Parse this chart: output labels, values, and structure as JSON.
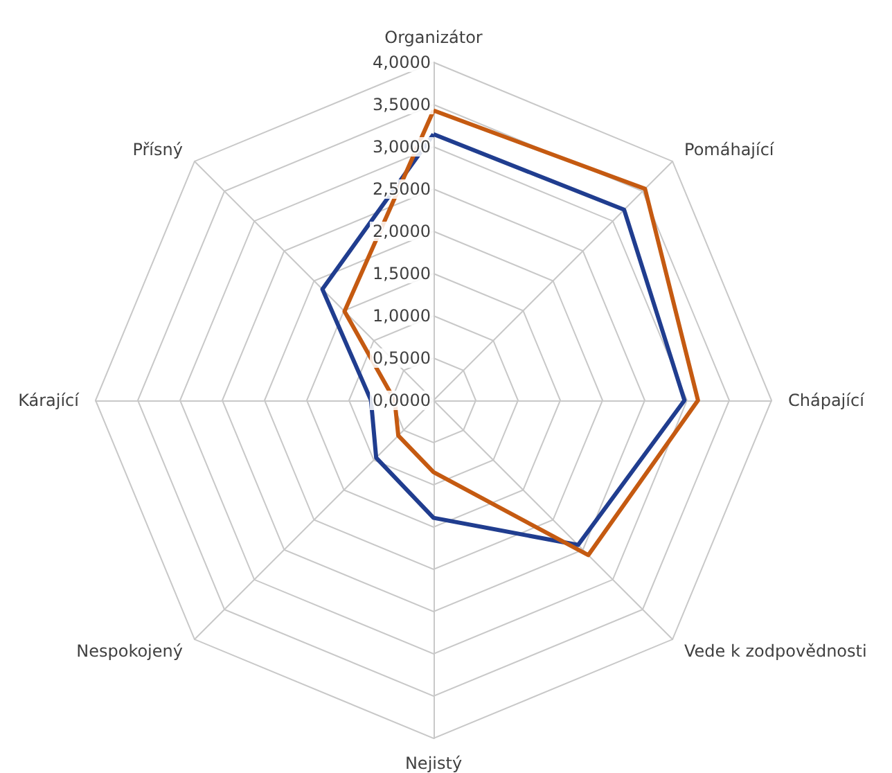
{
  "chart_data": {
    "type": "radar",
    "categories": [
      "Organizátor",
      "Pomáhající",
      "Chápající",
      "Vede k zodpovědnosti",
      "Nejistý",
      "Nespokojený",
      "Kárající",
      "Přísný"
    ],
    "series": [
      {
        "color": "#203d8f",
        "values": [
          3.15,
          3.19,
          2.97,
          2.42,
          1.39,
          0.96,
          0.74,
          1.86
        ]
      },
      {
        "color": "#c55a11",
        "values": [
          3.43,
          3.54,
          3.13,
          2.59,
          0.85,
          0.59,
          0.46,
          1.49
        ]
      }
    ],
    "ylim": [
      0,
      4
    ],
    "yticks": [
      {
        "value": 0,
        "label": "0,0000"
      },
      {
        "value": 0.5,
        "label": "0,5000"
      },
      {
        "value": 1,
        "label": "1,0000"
      },
      {
        "value": 1.5,
        "label": "1,5000"
      },
      {
        "value": 2,
        "label": "2,0000"
      },
      {
        "value": 2.5,
        "label": "2,5000"
      },
      {
        "value": 3,
        "label": "3,0000"
      },
      {
        "value": 3.5,
        "label": "3,5000"
      },
      {
        "value": 4,
        "label": "4,0000"
      }
    ],
    "grid": true,
    "marker": "none",
    "line_style": "solid"
  }
}
